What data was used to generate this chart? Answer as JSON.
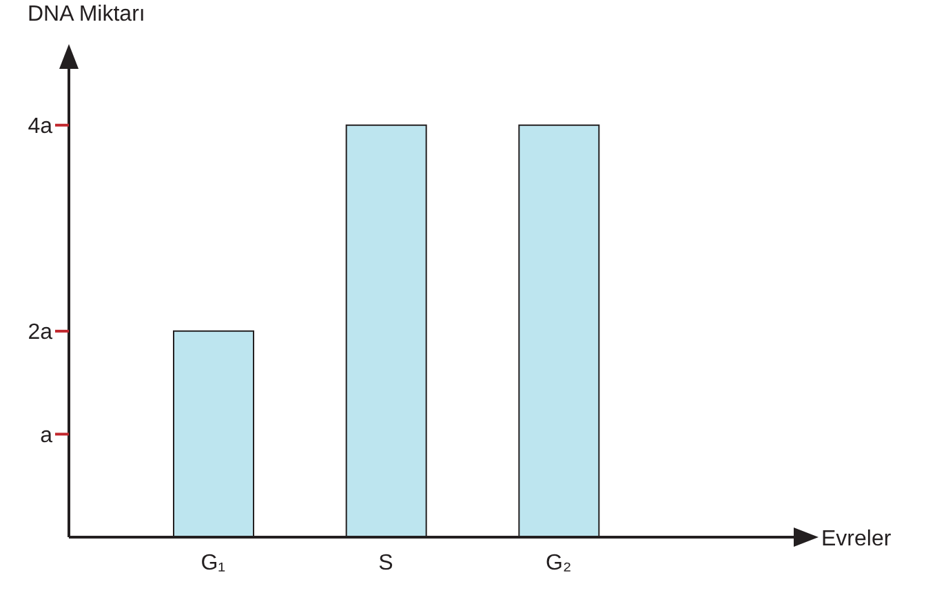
{
  "chart_data": {
    "type": "bar",
    "ylabel": "DNA Miktarı",
    "annotations": [
      "Evreler"
    ],
    "categories": [
      "G₁",
      "S",
      "G₂"
    ],
    "values": [
      2,
      4,
      4
    ],
    "color": "#bde5ef",
    "ylim": [
      0,
      4.6
    ],
    "yticks": [
      {
        "value": 1,
        "label": "a"
      },
      {
        "value": 2,
        "label": "2a"
      },
      {
        "value": 4,
        "label": "4a"
      }
    ],
    "grid": false
  }
}
